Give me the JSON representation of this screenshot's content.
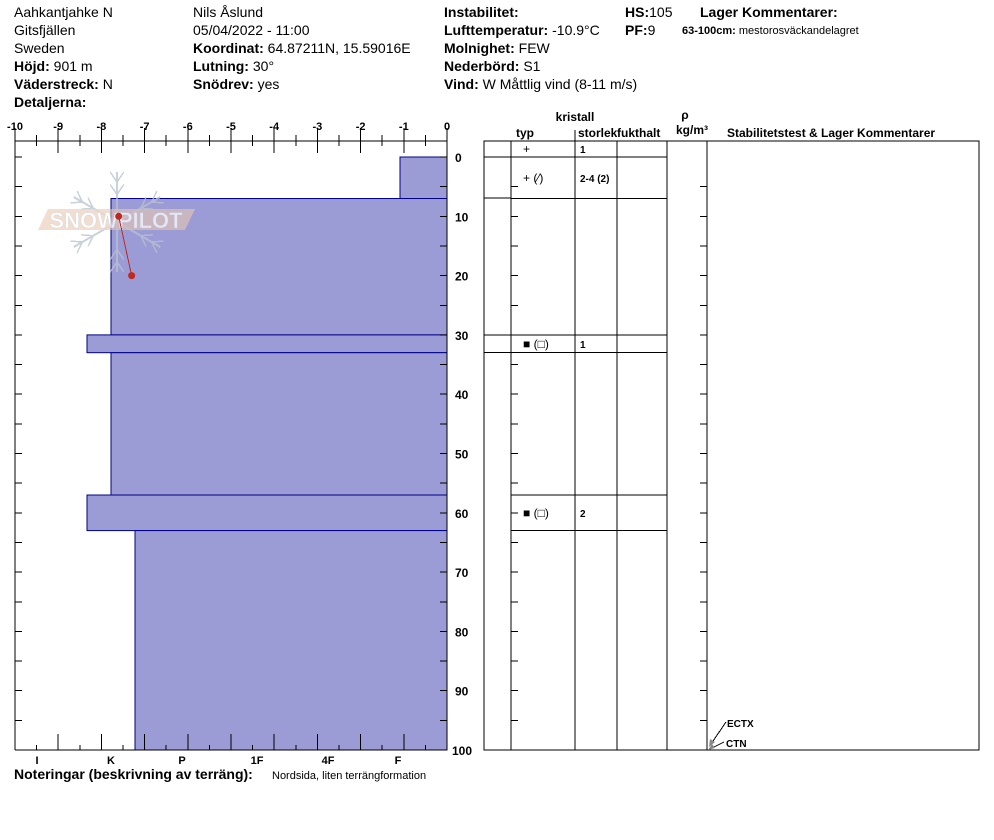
{
  "header": {
    "col1": {
      "location": "Aahkantjahke N",
      "region": "Gitsfjällen",
      "country": "Sweden",
      "elevation_label": "Höjd:",
      "elevation_value": "901 m",
      "aspect_label": "Väderstreck:",
      "aspect_value": "N",
      "details_label": "Detaljerna:"
    },
    "col2": {
      "observer": "Nils Åslund",
      "datetime": "05/04/2022 - 11:00",
      "coord_label": "Koordinat:",
      "coord_value": "64.87211N, 15.59016E",
      "slope_label": "Lutning:",
      "slope_value": "30°",
      "drift_label": "Snödrev:",
      "drift_value": "yes"
    },
    "col3": {
      "instability_label": "Instabilitet:",
      "airtemp_label": "Lufttemperatur:",
      "airtemp_value": "-10.9°C",
      "sky_label": "Molnighet:",
      "sky_value": "FEW",
      "precip_label": "Nederbörd:",
      "precip_value": "S1",
      "wind_label": "Vind:",
      "wind_value": "W Måttlig vind (8-11 m/s)"
    },
    "hs_label": "HS:",
    "hs_value": "105",
    "pf_label": "PF:",
    "pf_value": "9",
    "layer_comments_label": "Lager Kommentarer:",
    "layer_comment_range": "63-100cm:",
    "layer_comment_text": "mestorosväckandelagret"
  },
  "notes": {
    "label": "Noteringar (beskrivning av terräng):",
    "value": "Nordsida, liten terrängformation"
  },
  "logo_text": "SNOWPILOT",
  "colors": {
    "layer_fill": "#9b9bd6",
    "layer_stroke": "#00008b",
    "temp": "#c0281e",
    "logo_text": "#e8c8b0",
    "logo_flake": "#b8c4d0"
  },
  "chart_data": {
    "type": "snow-profile",
    "temperature_axis": {
      "ticks": [
        "-10",
        "-9",
        "-8",
        "-7",
        "-6",
        "-5",
        "-4",
        "-3",
        "-2",
        "-1",
        "0"
      ],
      "range": [
        -10,
        0
      ]
    },
    "depth_axis": {
      "ticks": [
        "0",
        "10",
        "20",
        "30",
        "40",
        "50",
        "60",
        "70",
        "80",
        "90",
        "100"
      ],
      "range": [
        0,
        100
      ]
    },
    "hardness_axis": {
      "ticks": [
        "I",
        "K",
        "P",
        "1F",
        "4F",
        "F"
      ]
    },
    "layers": [
      {
        "top": 0,
        "bottom": 7,
        "hardness": "F"
      },
      {
        "top": 7,
        "bottom": 30,
        "hardness": "K"
      },
      {
        "top": 30,
        "bottom": 33,
        "hardness": "K+"
      },
      {
        "top": 33,
        "bottom": 57,
        "hardness": "K"
      },
      {
        "top": 57,
        "bottom": 63,
        "hardness": "K+"
      },
      {
        "top": 63,
        "bottom": 100,
        "hardness": "K-"
      }
    ],
    "temperature_profile": [
      {
        "depth": 10,
        "temp": -7.6
      },
      {
        "depth": 20,
        "temp": -7.3
      }
    ]
  },
  "table": {
    "headers": {
      "crystal": "kristall",
      "type": "typ",
      "size": "storlek",
      "moisture": "fukthalt",
      "rho": "ρ",
      "density_unit": "kg/m³",
      "stability": "Stabilitetstest & Lager Kommentarer"
    },
    "rows": [
      {
        "top": -2.7,
        "bottom": 0,
        "type": "+",
        "size": "1"
      },
      {
        "top": 0,
        "bottom": 7,
        "type": "+ (⁄)",
        "size": "2-4 (2)"
      },
      {
        "top": 7,
        "bottom": 30,
        "type": "",
        "size": ""
      },
      {
        "top": 30,
        "bottom": 33,
        "type": "■ (□)",
        "size": "1"
      },
      {
        "top": 33,
        "bottom": 57,
        "type": "",
        "size": ""
      },
      {
        "top": 57,
        "bottom": 63,
        "type": "■ (□)",
        "size": "2"
      },
      {
        "top": 63,
        "bottom": 100,
        "type": "",
        "size": ""
      }
    ],
    "tests": [
      {
        "label": "ECTX",
        "depth": 100
      },
      {
        "label": "CTN",
        "depth": 100
      }
    ]
  }
}
